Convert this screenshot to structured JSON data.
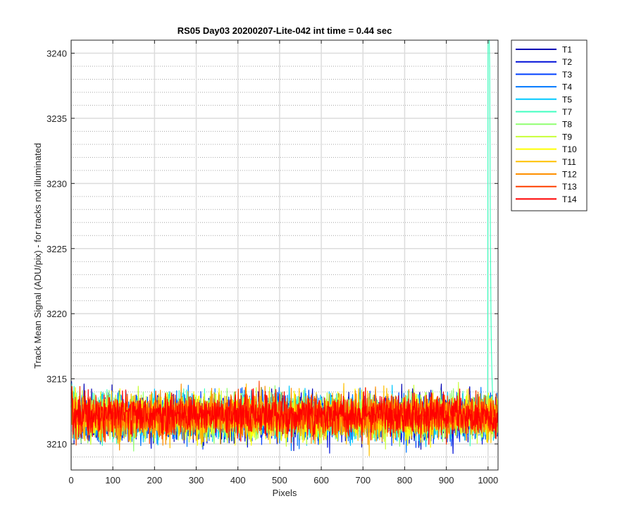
{
  "chart_data": {
    "type": "line",
    "title": "RS05 Day03 20200207-Lite-042 int time = 0.44 sec",
    "xlabel": "Pixels",
    "ylabel": "Track Mean Signal (ADU/pix) - for tracks not illuminated",
    "xlim": [
      0,
      1024
    ],
    "ylim": [
      3208,
      3241
    ],
    "x_ticks": [
      0,
      100,
      200,
      300,
      400,
      500,
      600,
      700,
      800,
      900,
      1000
    ],
    "y_ticks": [
      3210,
      3215,
      3220,
      3225,
      3230,
      3235,
      3240
    ],
    "x_tick_labels": [
      "0",
      "100",
      "200",
      "300",
      "400",
      "500",
      "600",
      "700",
      "800",
      "900",
      "1000"
    ],
    "y_tick_labels": [
      "3210",
      "3215",
      "3220",
      "3225",
      "3230",
      "3235",
      "3240"
    ],
    "grid": "major and minor",
    "legend_position": "outside-right",
    "x_points": 1024,
    "series": [
      {
        "name": "T1",
        "color": "#0000b4",
        "mean": 3212.0,
        "noise_sd": 1.1,
        "note_values": {
          "start": 3212.5
        }
      },
      {
        "name": "T2",
        "color": "#0010d8",
        "mean": 3212.0,
        "noise_sd": 1.1
      },
      {
        "name": "T3",
        "color": "#0040ff",
        "mean": 3212.0,
        "noise_sd": 1.1
      },
      {
        "name": "T4",
        "color": "#0078ff",
        "mean": 3212.0,
        "noise_sd": 1.1
      },
      {
        "name": "T5",
        "color": "#00c8ff",
        "mean": 3212.1,
        "noise_sd": 1.1
      },
      {
        "name": "T7",
        "color": "#40ffc0",
        "mean": 3212.1,
        "noise_sd": 1.1,
        "spike": {
          "x_from": 1000,
          "y_top": 3241
        }
      },
      {
        "name": "T8",
        "color": "#90ff70",
        "mean": 3212.1,
        "noise_sd": 1.1
      },
      {
        "name": "T9",
        "color": "#c8ff38",
        "mean": 3212.1,
        "noise_sd": 1.1
      },
      {
        "name": "T10",
        "color": "#ffff00",
        "mean": 3212.0,
        "noise_sd": 1.1
      },
      {
        "name": "T11",
        "color": "#ffc000",
        "mean": 3212.1,
        "noise_sd": 1.1
      },
      {
        "name": "T12",
        "color": "#ff9000",
        "mean": 3212.1,
        "noise_sd": 1.1
      },
      {
        "name": "T13",
        "color": "#ff4000",
        "mean": 3212.2,
        "noise_sd": 1.0
      },
      {
        "name": "T14",
        "color": "#ff0000",
        "mean": 3212.2,
        "noise_sd": 1.0
      }
    ]
  }
}
